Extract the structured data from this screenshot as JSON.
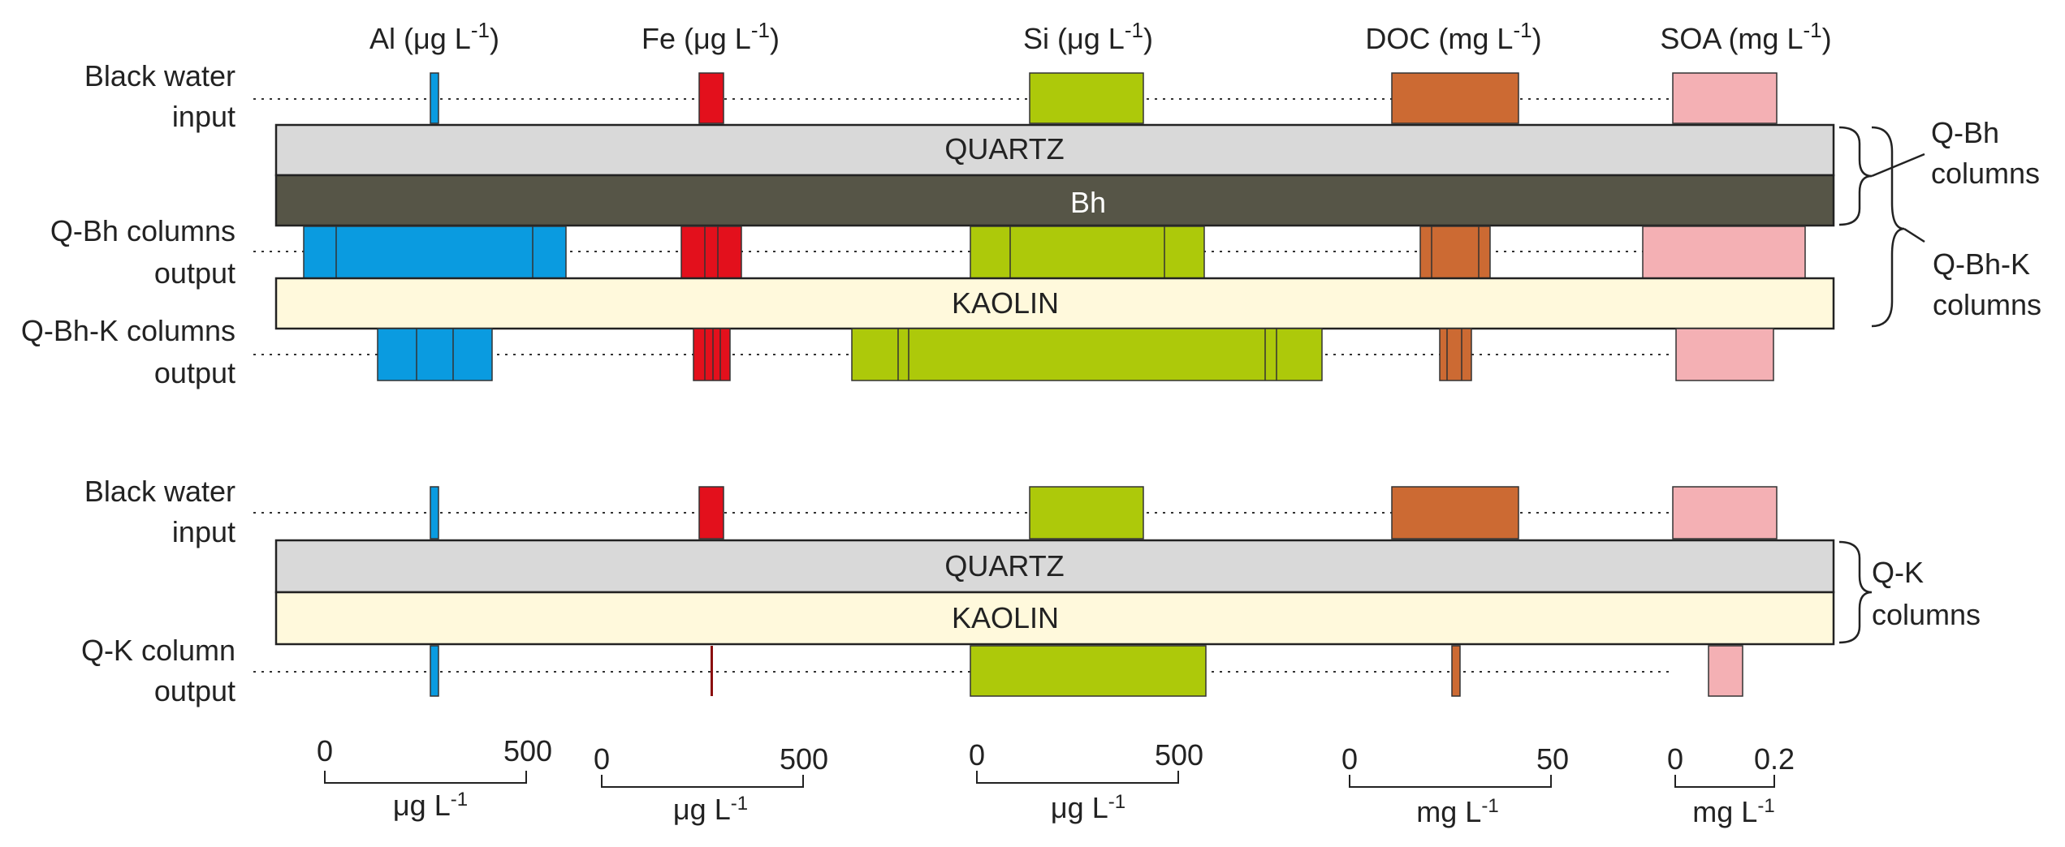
{
  "headers": {
    "al": {
      "name": "Al (μg L",
      "sup": "-1",
      "close": ")"
    },
    "fe": {
      "name": "Fe (μg L",
      "sup": "-1",
      "close": ")"
    },
    "si": {
      "name": "Si (μg L",
      "sup": "-1",
      "close": ")"
    },
    "doc": {
      "name": "DOC (mg L",
      "sup": "-1",
      "close": ")"
    },
    "soa": {
      "name": "SOA (mg L",
      "sup": "-1",
      "close": ")"
    }
  },
  "layers": {
    "quartz": "QUARTZ",
    "bh": "Bh",
    "kaolin": "KAOLIN"
  },
  "row_labels": {
    "bw_top": [
      "Black water",
      "input"
    ],
    "qbh_out": [
      "Q-Bh columns",
      "output"
    ],
    "qbhk_out": [
      "Q-Bh-K columns",
      "output"
    ],
    "bw_bottom": [
      "Black water",
      "input"
    ],
    "qk_out": [
      "Q-K column",
      "output"
    ]
  },
  "brackets": {
    "qbh": [
      "Q-Bh",
      "columns"
    ],
    "qbhk": [
      "Q-Bh-K",
      "columns"
    ],
    "qk": [
      "Q-K",
      "columns"
    ]
  },
  "scales": {
    "al": {
      "min": "0",
      "max": "500",
      "unit": "μg L",
      "sup": "-1"
    },
    "fe": {
      "min": "0",
      "max": "500",
      "unit": "μg L",
      "sup": "-1"
    },
    "si": {
      "min": "0",
      "max": "500",
      "unit": "μg L",
      "sup": "-1"
    },
    "doc": {
      "min": "0",
      "max": "50",
      "unit": "mg L",
      "sup": "-1"
    },
    "soa": {
      "min": "0",
      "max": "0.2",
      "unit": "mg L",
      "sup": "-1"
    }
  },
  "colors": {
    "al": "#0a9be0",
    "fe": "#e3101c",
    "si": "#adc90a",
    "doc": "#cc6a33",
    "soa": "#f4b0b4",
    "quartz": "#d9d9d9",
    "bh": "#565547",
    "kaolin": "#fff9dc"
  }
}
